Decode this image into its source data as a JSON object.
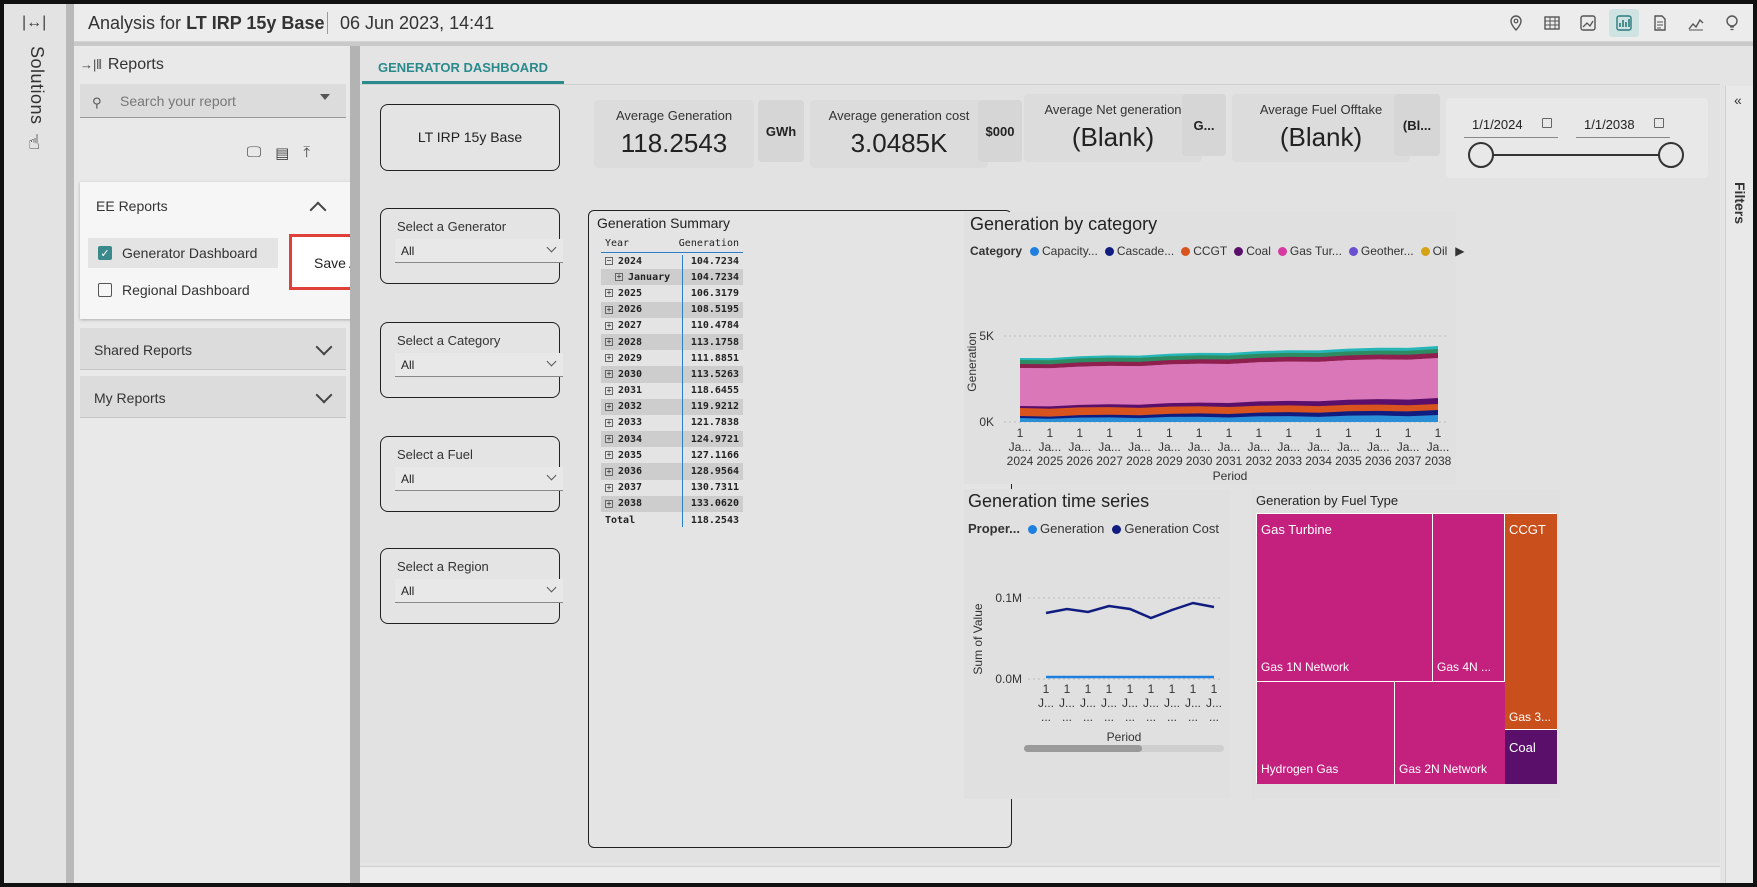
{
  "rail": {
    "label": "Solutions"
  },
  "header": {
    "title_prefix": "Analysis for",
    "title_bold": "LT IRP 15y Base",
    "datetime": "06 Jun 2023, 14:41"
  },
  "reports": {
    "title": "Reports",
    "search_placeholder": "Search your report",
    "groups": [
      {
        "label": "EE Reports",
        "expanded": true
      },
      {
        "label": "Shared Reports",
        "expanded": false
      },
      {
        "label": "My Reports",
        "expanded": false
      }
    ],
    "ee_items": [
      {
        "label": "Generator Dashboard",
        "checked": true
      },
      {
        "label": "Regional Dashboard",
        "checked": false
      }
    ],
    "context_menu": "Save As"
  },
  "tab": {
    "label": "GENERATOR DASHBOARD"
  },
  "filters_label": "Filters",
  "dashboard": {
    "scenario": "LT IRP 15y Base",
    "kpis": [
      {
        "label": "Average Generation",
        "value": "118.2543",
        "unit": "GWh"
      },
      {
        "label": "Average generation cost",
        "value": "3.0485K",
        "unit": "$000"
      },
      {
        "label": "Average Net generation",
        "value": "(Blank)",
        "unit": "G..."
      },
      {
        "label": "Average Fuel Offtake",
        "value": "(Blank)",
        "unit": "(Bl..."
      }
    ],
    "date_range": {
      "start": "1/1/2024",
      "end": "1/1/2038"
    },
    "slicers": [
      {
        "label": "Select a Generator",
        "value": "All"
      },
      {
        "label": "Select a Category",
        "value": "All"
      },
      {
        "label": "Select a Fuel",
        "value": "All"
      },
      {
        "label": "Select a Region",
        "value": "All"
      }
    ],
    "gen_summary": {
      "title": "Generation Summary",
      "col_year": "Year",
      "col_gen": "Generation",
      "rows": [
        {
          "year": "2024",
          "value": "104.7234",
          "expanded": true
        },
        {
          "year": "January",
          "value": "104.7234",
          "child": true
        },
        {
          "year": "2025",
          "value": "106.3179"
        },
        {
          "year": "2026",
          "value": "108.5195"
        },
        {
          "year": "2027",
          "value": "110.4784"
        },
        {
          "year": "2028",
          "value": "113.1758"
        },
        {
          "year": "2029",
          "value": "111.8851"
        },
        {
          "year": "2030",
          "value": "113.5263"
        },
        {
          "year": "2031",
          "value": "118.6455"
        },
        {
          "year": "2032",
          "value": "119.9212"
        },
        {
          "year": "2033",
          "value": "121.7838"
        },
        {
          "year": "2034",
          "value": "124.9721"
        },
        {
          "year": "2035",
          "value": "127.1166"
        },
        {
          "year": "2036",
          "value": "128.9564"
        },
        {
          "year": "2037",
          "value": "130.7311"
        },
        {
          "year": "2038",
          "value": "133.0620"
        }
      ],
      "total_label": "Total",
      "total_value": "118.2543"
    },
    "gen_by_category": {
      "title": "Generation by category",
      "legend_title": "Category",
      "legend": [
        {
          "name": "Capacity...",
          "color": "#1f7fe0"
        },
        {
          "name": "Cascade...",
          "color": "#101c80"
        },
        {
          "name": "CCGT",
          "color": "#d9531e"
        },
        {
          "name": "Coal",
          "color": "#5a0f6a"
        },
        {
          "name": "Gas Tur...",
          "color": "#d63aa0"
        },
        {
          "name": "Geother...",
          "color": "#6b4fd1"
        },
        {
          "name": "Oil",
          "color": "#d4a316"
        }
      ],
      "ylabel": "Generation",
      "xlabel": "Period",
      "y_ticks": [
        "5K",
        "0K"
      ],
      "tick_top": "1",
      "tick_mid": "Ja...",
      "years": [
        "2024",
        "2025",
        "2026",
        "2027",
        "2028",
        "2029",
        "2030",
        "2031",
        "2032",
        "2033",
        "2034",
        "2035",
        "2036",
        "2037",
        "2038"
      ]
    },
    "gen_time_series": {
      "title": "Generation time series",
      "legend_title": "Proper...",
      "legend": [
        {
          "name": "Generation",
          "color": "#1f7fe0"
        },
        {
          "name": "Generation Cost",
          "color": "#101c80"
        }
      ],
      "ylabel": "Sum of Value",
      "xlabel": "Period",
      "y_ticks": [
        "0.1M",
        "0.0M"
      ],
      "x_ticks": [
        "1",
        "1",
        "1",
        "1",
        "1",
        "1",
        "1",
        "1",
        "1"
      ],
      "x_ticks_2": [
        "J...",
        "J...",
        "J...",
        "J...",
        "J...",
        "J...",
        "J...",
        "J...",
        "J..."
      ],
      "x_ticks_3": [
        "...",
        "...",
        "...",
        "...",
        "...",
        "...",
        "...",
        "...",
        "..."
      ]
    },
    "gen_by_fuel": {
      "title": "Generation by Fuel Type",
      "tiles": [
        {
          "label": "Gas Turbine",
          "color": "#c4217f"
        },
        {
          "label": "Gas 1N Network",
          "color": "#c4217f"
        },
        {
          "label": "Gas 4N ...",
          "color": "#c4217f"
        },
        {
          "label": "CCGT",
          "color": "#c9501c"
        },
        {
          "label": "Gas 3...",
          "color": "#c9501c"
        },
        {
          "label": "Hydrogen Gas",
          "color": "#c4217f"
        },
        {
          "label": "Gas 2N Network",
          "color": "#c4217f"
        },
        {
          "label": "Coal",
          "color": "#5a0f6a"
        }
      ]
    }
  }
}
